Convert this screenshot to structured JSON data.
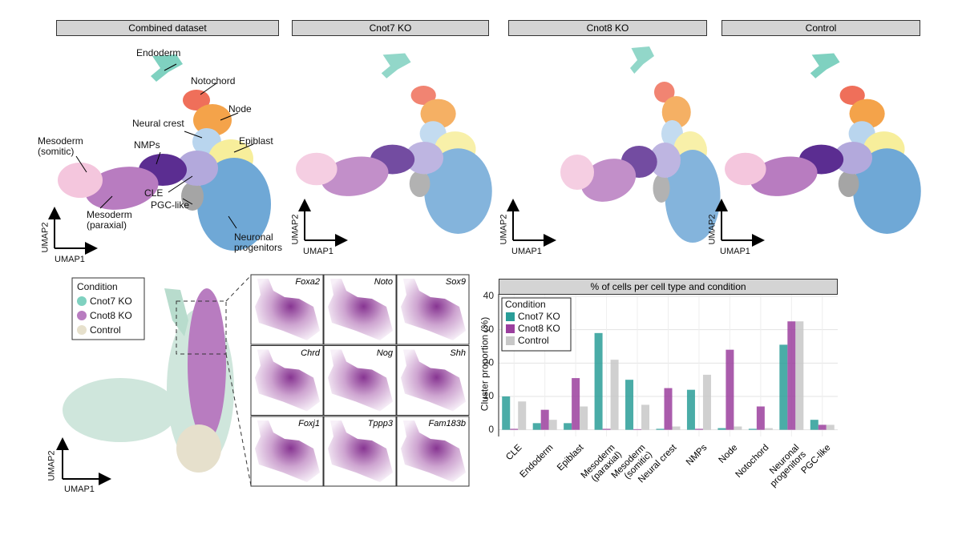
{
  "panels": [
    {
      "title": "Combined dataset"
    },
    {
      "title": "Cnot7 KO"
    },
    {
      "title": "Cnot8 KO"
    },
    {
      "title": "Control"
    }
  ],
  "umap_axes": {
    "x": "UMAP1",
    "y": "UMAP2"
  },
  "cluster_labels": [
    "Endoderm",
    "Notochord",
    "Node",
    "Neural crest",
    "Epiblast",
    "Mesoderm\n(somitic)",
    "NMPs",
    "CLE",
    "Mesoderm\n(paraxial)",
    "PGC-like",
    "Neuronal\nprogenitors"
  ],
  "condition_legend": {
    "title": "Condition",
    "items": [
      "Cnot7 KO",
      "Cnot8 KO",
      "Control"
    ],
    "colors": [
      "#7fd1c0",
      "#b87cc0",
      "#e6e0cc"
    ]
  },
  "genes": [
    "Foxa2",
    "Noto",
    "Sox9",
    "Chrd",
    "Nog",
    "Shh",
    "Foxj1",
    "Tppp3",
    "Fam183b"
  ],
  "chart_data": {
    "type": "bar",
    "title": "% of cells per cell type and condition",
    "y_label": "Cluster proportion (%)",
    "categories": [
      "CLE",
      "Endoderm",
      "Epiblast",
      "Mesoderm\n(paraxial)",
      "Mesoderm\n(somitic)",
      "Neural crest",
      "NMPs",
      "Node",
      "Notochord",
      "Neuronal\nprogenitors",
      "PGC-like"
    ],
    "legend_title": "Condition",
    "series": [
      {
        "name": "Cnot7 KO",
        "color": "#2a9d98",
        "values": [
          10,
          2,
          2,
          29,
          15,
          0.3,
          12,
          0.5,
          0.3,
          25.5,
          3
        ]
      },
      {
        "name": "Cnot8 KO",
        "color": "#9b3f9e",
        "values": [
          0.3,
          6,
          15.5,
          0.3,
          0.2,
          12.5,
          0.3,
          24,
          7,
          32.5,
          1.5
        ]
      },
      {
        "name": "Control",
        "color": "#c8c8c8",
        "values": [
          8.5,
          3,
          7,
          21,
          7.5,
          1,
          16.5,
          1,
          0.5,
          32.5,
          1.5
        ]
      }
    ],
    "ylim": [
      -2,
      40
    ],
    "yticks": [
      0,
      10,
      20,
      30,
      40
    ],
    "grid": true,
    "legend": "top-left"
  }
}
